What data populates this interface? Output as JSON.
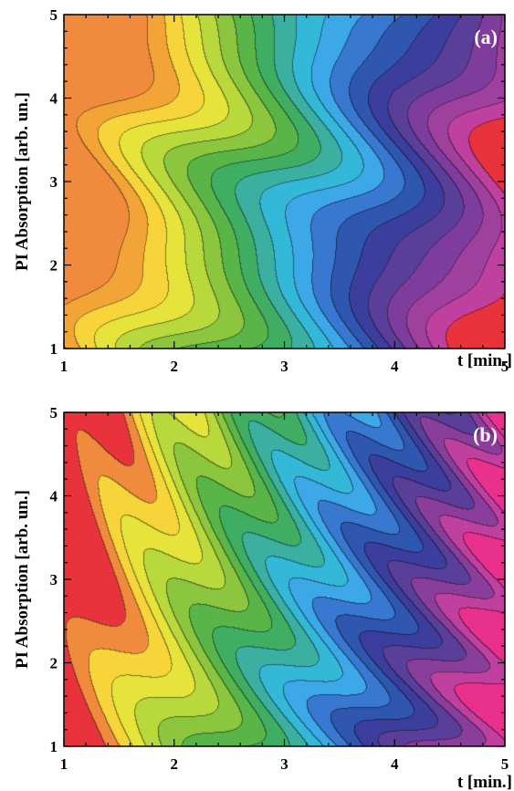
{
  "chart_data": [
    {
      "type": "heatmap",
      "panel_label": "(a)",
      "xlabel": "t [min.]",
      "ylabel": "PI Absorption [arb. un.]",
      "xlim": [
        1,
        5
      ],
      "ylim": [
        1,
        5
      ],
      "x_ticks": [
        "1",
        "2",
        "3",
        "4",
        "5"
      ],
      "y_ticks": [
        "1",
        "2",
        "3",
        "4",
        "5"
      ],
      "grid": false,
      "legend": "none",
      "colorscale": [
        "#f08a3c",
        "#f3a436",
        "#f7d53a",
        "#e6e43a",
        "#b8d83c",
        "#8cc63f",
        "#5ab548",
        "#3fae62",
        "#3bb0a0",
        "#34b8d8",
        "#3ca8e8",
        "#3878d0",
        "#2f57b0",
        "#3c3e9e",
        "#5a3f9a",
        "#7e3d9c",
        "#a0409e",
        "#c040a0",
        "#e8323c"
      ]
    },
    {
      "type": "heatmap",
      "panel_label": "(b)",
      "xlabel": "t [min.]",
      "ylabel": "PI Absorption [arb. un.]",
      "xlim": [
        1,
        5
      ],
      "ylim": [
        1,
        5
      ],
      "x_ticks": [
        "1",
        "2",
        "3",
        "4",
        "5"
      ],
      "y_ticks": [
        "1",
        "2",
        "3",
        "4",
        "5"
      ],
      "grid": false,
      "legend": "none",
      "colorscale": [
        "#e8323c",
        "#f08a3c",
        "#f7d53a",
        "#e6e43a",
        "#b8d83c",
        "#8cc63f",
        "#5ab548",
        "#3fae62",
        "#3bb0a0",
        "#34b8d8",
        "#3ca8e8",
        "#3878d0",
        "#2f57b0",
        "#3c3e9e",
        "#5a3f9a",
        "#8a3e9c",
        "#c040a0",
        "#e8308c"
      ]
    }
  ]
}
